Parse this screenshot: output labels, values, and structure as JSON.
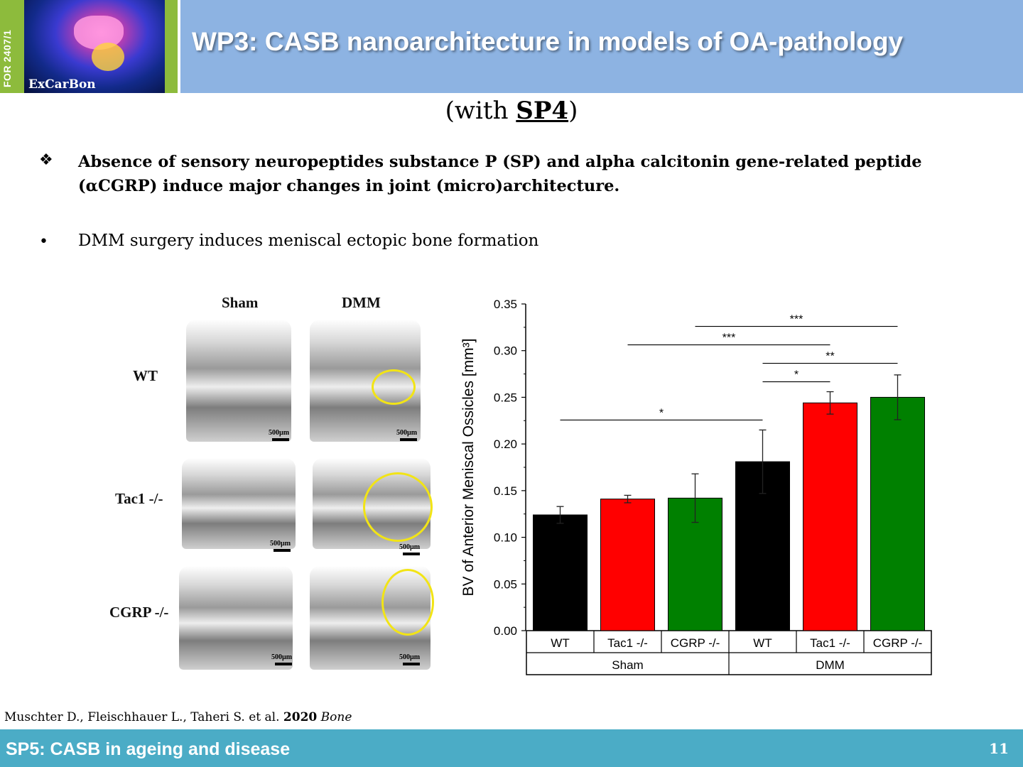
{
  "header": {
    "side_label": "FOR 2407/1",
    "logo_text": "ExCarBon",
    "title": "WP3: CASB nanoarchitecture in models of OA-pathology"
  },
  "subtitle": {
    "prefix": "(with ",
    "bold": "SP4",
    "suffix": ")"
  },
  "bullets": [
    {
      "marker": "❖",
      "text": "Absence of sensory neuropeptides substance P (SP) and alpha calcitonin gene-related peptide (αCGRP) induce major changes in joint (micro)architecture."
    },
    {
      "marker": "•",
      "text": "DMM surgery induces meniscal ectopic bone formation"
    }
  ],
  "figure": {
    "columns": [
      "Sham",
      "DMM"
    ],
    "rows": [
      "WT",
      "Tac1 -/-",
      "CGRP -/-"
    ],
    "scale_label": "500µm"
  },
  "chart_data": {
    "type": "bar",
    "categories": [
      "WT",
      "Tac1 -/-",
      "CGRP -/-",
      "WT",
      "Tac1 -/-",
      "CGRP -/-"
    ],
    "groups": [
      {
        "label": "Sham",
        "categories": [
          "WT",
          "Tac1 -/-",
          "CGRP -/-"
        ]
      },
      {
        "label": "DMM",
        "categories": [
          "WT",
          "Tac1 -/-",
          "CGRP -/-"
        ]
      }
    ],
    "values": [
      0.124,
      0.141,
      0.142,
      0.181,
      0.244,
      0.25
    ],
    "errors": [
      0.009,
      0.004,
      0.026,
      0.034,
      0.012,
      0.024
    ],
    "colors": [
      "#000000",
      "#ff0000",
      "#008000",
      "#000000",
      "#ff0000",
      "#008000"
    ],
    "ylabel": "BV of Anterior Meniscal Ossicles [mm³]",
    "ylim": [
      0,
      0.35
    ],
    "yticks": [
      "0.00",
      "0.05",
      "0.10",
      "0.15",
      "0.20",
      "0.25",
      "0.30",
      "0.35"
    ],
    "significance": [
      {
        "from": 0,
        "to": 3,
        "label": "*"
      },
      {
        "from": 3,
        "to": 4,
        "label": "*"
      },
      {
        "from": 3,
        "to": 5,
        "label": "**"
      },
      {
        "from": 1,
        "to": 4,
        "label": "***"
      },
      {
        "from": 2,
        "to": 5,
        "label": "***"
      }
    ]
  },
  "citation": {
    "authors": "Muschter D., Fleischhauer L., Taheri S. et al. ",
    "year": "2020",
    "journal": " Bone"
  },
  "footer": {
    "text": "SP5: CASB in ageing and disease",
    "page": "11"
  }
}
